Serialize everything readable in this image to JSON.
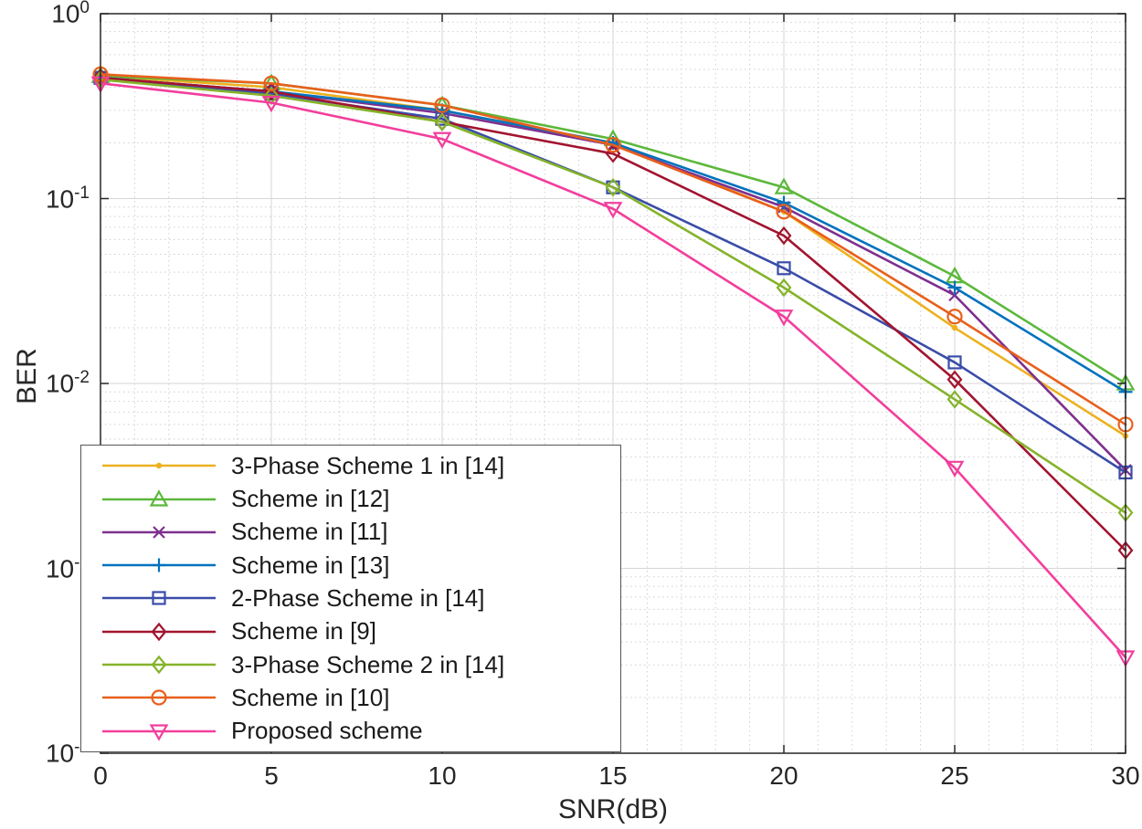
{
  "figure": {
    "background": "#ffffff",
    "axis_color": "#262626",
    "grid_major_color": "#d6d6d6",
    "grid_minor_color": "#cfcfcf"
  },
  "chart_data": {
    "type": "line",
    "title": "",
    "xlabel": "SNR(dB)",
    "ylabel": "BER",
    "xlim": [
      0,
      30
    ],
    "ylim_log10": [
      -4,
      0
    ],
    "x_ticks": [
      0,
      5,
      10,
      15,
      20,
      25,
      30
    ],
    "y_tick_labels": [
      {
        "base": "10",
        "exp": "0",
        "log10": 0
      },
      {
        "base": "10",
        "exp": "-1",
        "log10": -1
      },
      {
        "base": "10",
        "exp": "-2",
        "log10": -2
      },
      {
        "base": "10",
        "exp": "-3",
        "log10": -3
      },
      {
        "base": "10",
        "exp": "-4",
        "log10": -4
      }
    ],
    "grid": {
      "major": "solid",
      "minor": "dotted"
    },
    "legend_position": "bottom-left-inside",
    "x": [
      0,
      5,
      10,
      15,
      20,
      25,
      30
    ],
    "series": [
      {
        "name": "3-Phase Scheme 1 in [14]",
        "color": "#EDB120",
        "marker": "dot",
        "values": [
          0.46,
          0.4,
          0.3,
          0.2,
          0.085,
          0.02,
          0.0052
        ]
      },
      {
        "name": "Scheme in [12]",
        "color": "#5CB83C",
        "marker": "triangle-up",
        "values": [
          0.46,
          0.42,
          0.32,
          0.21,
          0.115,
          0.038,
          0.01
        ]
      },
      {
        "name": "Scheme in [11]",
        "color": "#7E2F8E",
        "marker": "x",
        "values": [
          0.45,
          0.38,
          0.29,
          0.195,
          0.09,
          0.03,
          0.0034
        ]
      },
      {
        "name": "Scheme in [13]",
        "color": "#0072BD",
        "marker": "plus",
        "values": [
          0.45,
          0.38,
          0.3,
          0.2,
          0.095,
          0.033,
          0.009
        ]
      },
      {
        "name": "2-Phase Scheme in [14]",
        "color": "#3A4CA8",
        "marker": "square",
        "values": [
          0.45,
          0.37,
          0.27,
          0.115,
          0.042,
          0.013,
          0.0033
        ]
      },
      {
        "name": "Scheme in [9]",
        "color": "#A2142F",
        "marker": "diamond",
        "values": [
          0.45,
          0.38,
          0.26,
          0.175,
          0.063,
          0.0105,
          0.00125
        ]
      },
      {
        "name": "3-Phase Scheme 2 in [14]",
        "color": "#85B32A",
        "marker": "diamond",
        "values": [
          0.44,
          0.36,
          0.26,
          0.115,
          0.033,
          0.0082,
          0.002
        ]
      },
      {
        "name": "Scheme in [10]",
        "color": "#E8601C",
        "marker": "circle",
        "values": [
          0.47,
          0.42,
          0.32,
          0.195,
          0.085,
          0.023,
          0.006
        ]
      },
      {
        "name": "Proposed scheme",
        "color": "#F23E9C",
        "marker": "triangle-down",
        "values": [
          0.42,
          0.33,
          0.21,
          0.088,
          0.023,
          0.0035,
          0.00033
        ]
      }
    ]
  }
}
